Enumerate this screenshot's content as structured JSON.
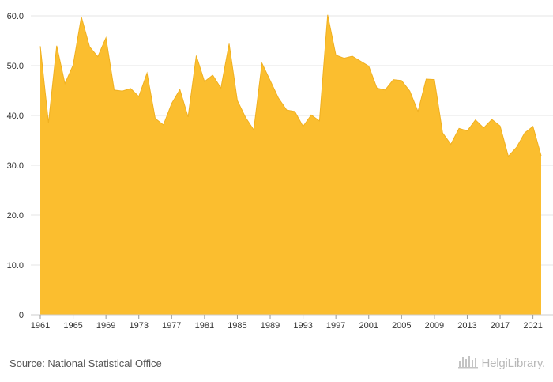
{
  "chart_data": {
    "type": "area",
    "x": [
      1961,
      1962,
      1963,
      1964,
      1965,
      1966,
      1967,
      1968,
      1969,
      1970,
      1971,
      1972,
      1973,
      1974,
      1975,
      1976,
      1977,
      1978,
      1979,
      1980,
      1981,
      1982,
      1983,
      1984,
      1985,
      1986,
      1987,
      1988,
      1989,
      1990,
      1991,
      1992,
      1993,
      1994,
      1995,
      1996,
      1997,
      1998,
      1999,
      2000,
      2001,
      2002,
      2003,
      2004,
      2005,
      2006,
      2007,
      2008,
      2009,
      2010,
      2011,
      2012,
      2013,
      2014,
      2015,
      2016,
      2017,
      2018,
      2019,
      2020,
      2021,
      2022
    ],
    "series": [
      {
        "values": [
          53.9,
          38.5,
          54.0,
          46.4,
          50.1,
          59.8,
          53.8,
          51.8,
          55.6,
          45.1,
          44.9,
          45.4,
          43.8,
          48.5,
          39.4,
          38.1,
          42.4,
          45.2,
          39.7,
          52.0,
          46.8,
          48.1,
          45.5,
          54.4,
          43.0,
          39.6,
          37.1,
          50.5,
          47.0,
          43.5,
          41.1,
          40.8,
          37.8,
          40.1,
          38.9,
          60.2,
          52.1,
          51.5,
          51.9,
          50.9,
          49.9,
          45.5,
          45.1,
          47.2,
          47.0,
          44.9,
          40.8,
          47.3,
          47.2,
          36.5,
          34.2,
          37.4,
          36.9,
          39.1,
          37.5,
          39.2,
          37.9,
          31.8,
          33.6,
          36.5,
          37.8,
          31.9
        ]
      }
    ],
    "x_tick_labels": [
      "1961",
      "1965",
      "1969",
      "1973",
      "1977",
      "1981",
      "1985",
      "1989",
      "1993",
      "1997",
      "2001",
      "2005",
      "2009",
      "2013",
      "2017",
      "2021"
    ],
    "y_tick_labels": [
      "0",
      "10.0",
      "20.0",
      "30.0",
      "40.0",
      "50.0",
      "60.0"
    ],
    "y_ticks": [
      0,
      10,
      20,
      30,
      40,
      50,
      60
    ],
    "ylim": [
      0,
      60
    ],
    "grid": true,
    "legend": "none",
    "colors": {
      "fill": "#fbbe2f",
      "stroke": "#f0b020",
      "grid": "#e6e6e6",
      "axis_text": "#333333"
    }
  },
  "footer": {
    "source": "Source: National Statistical Office",
    "brand": "HelgiLibrary.",
    "brand_icon": "helgi-logo-icon"
  }
}
